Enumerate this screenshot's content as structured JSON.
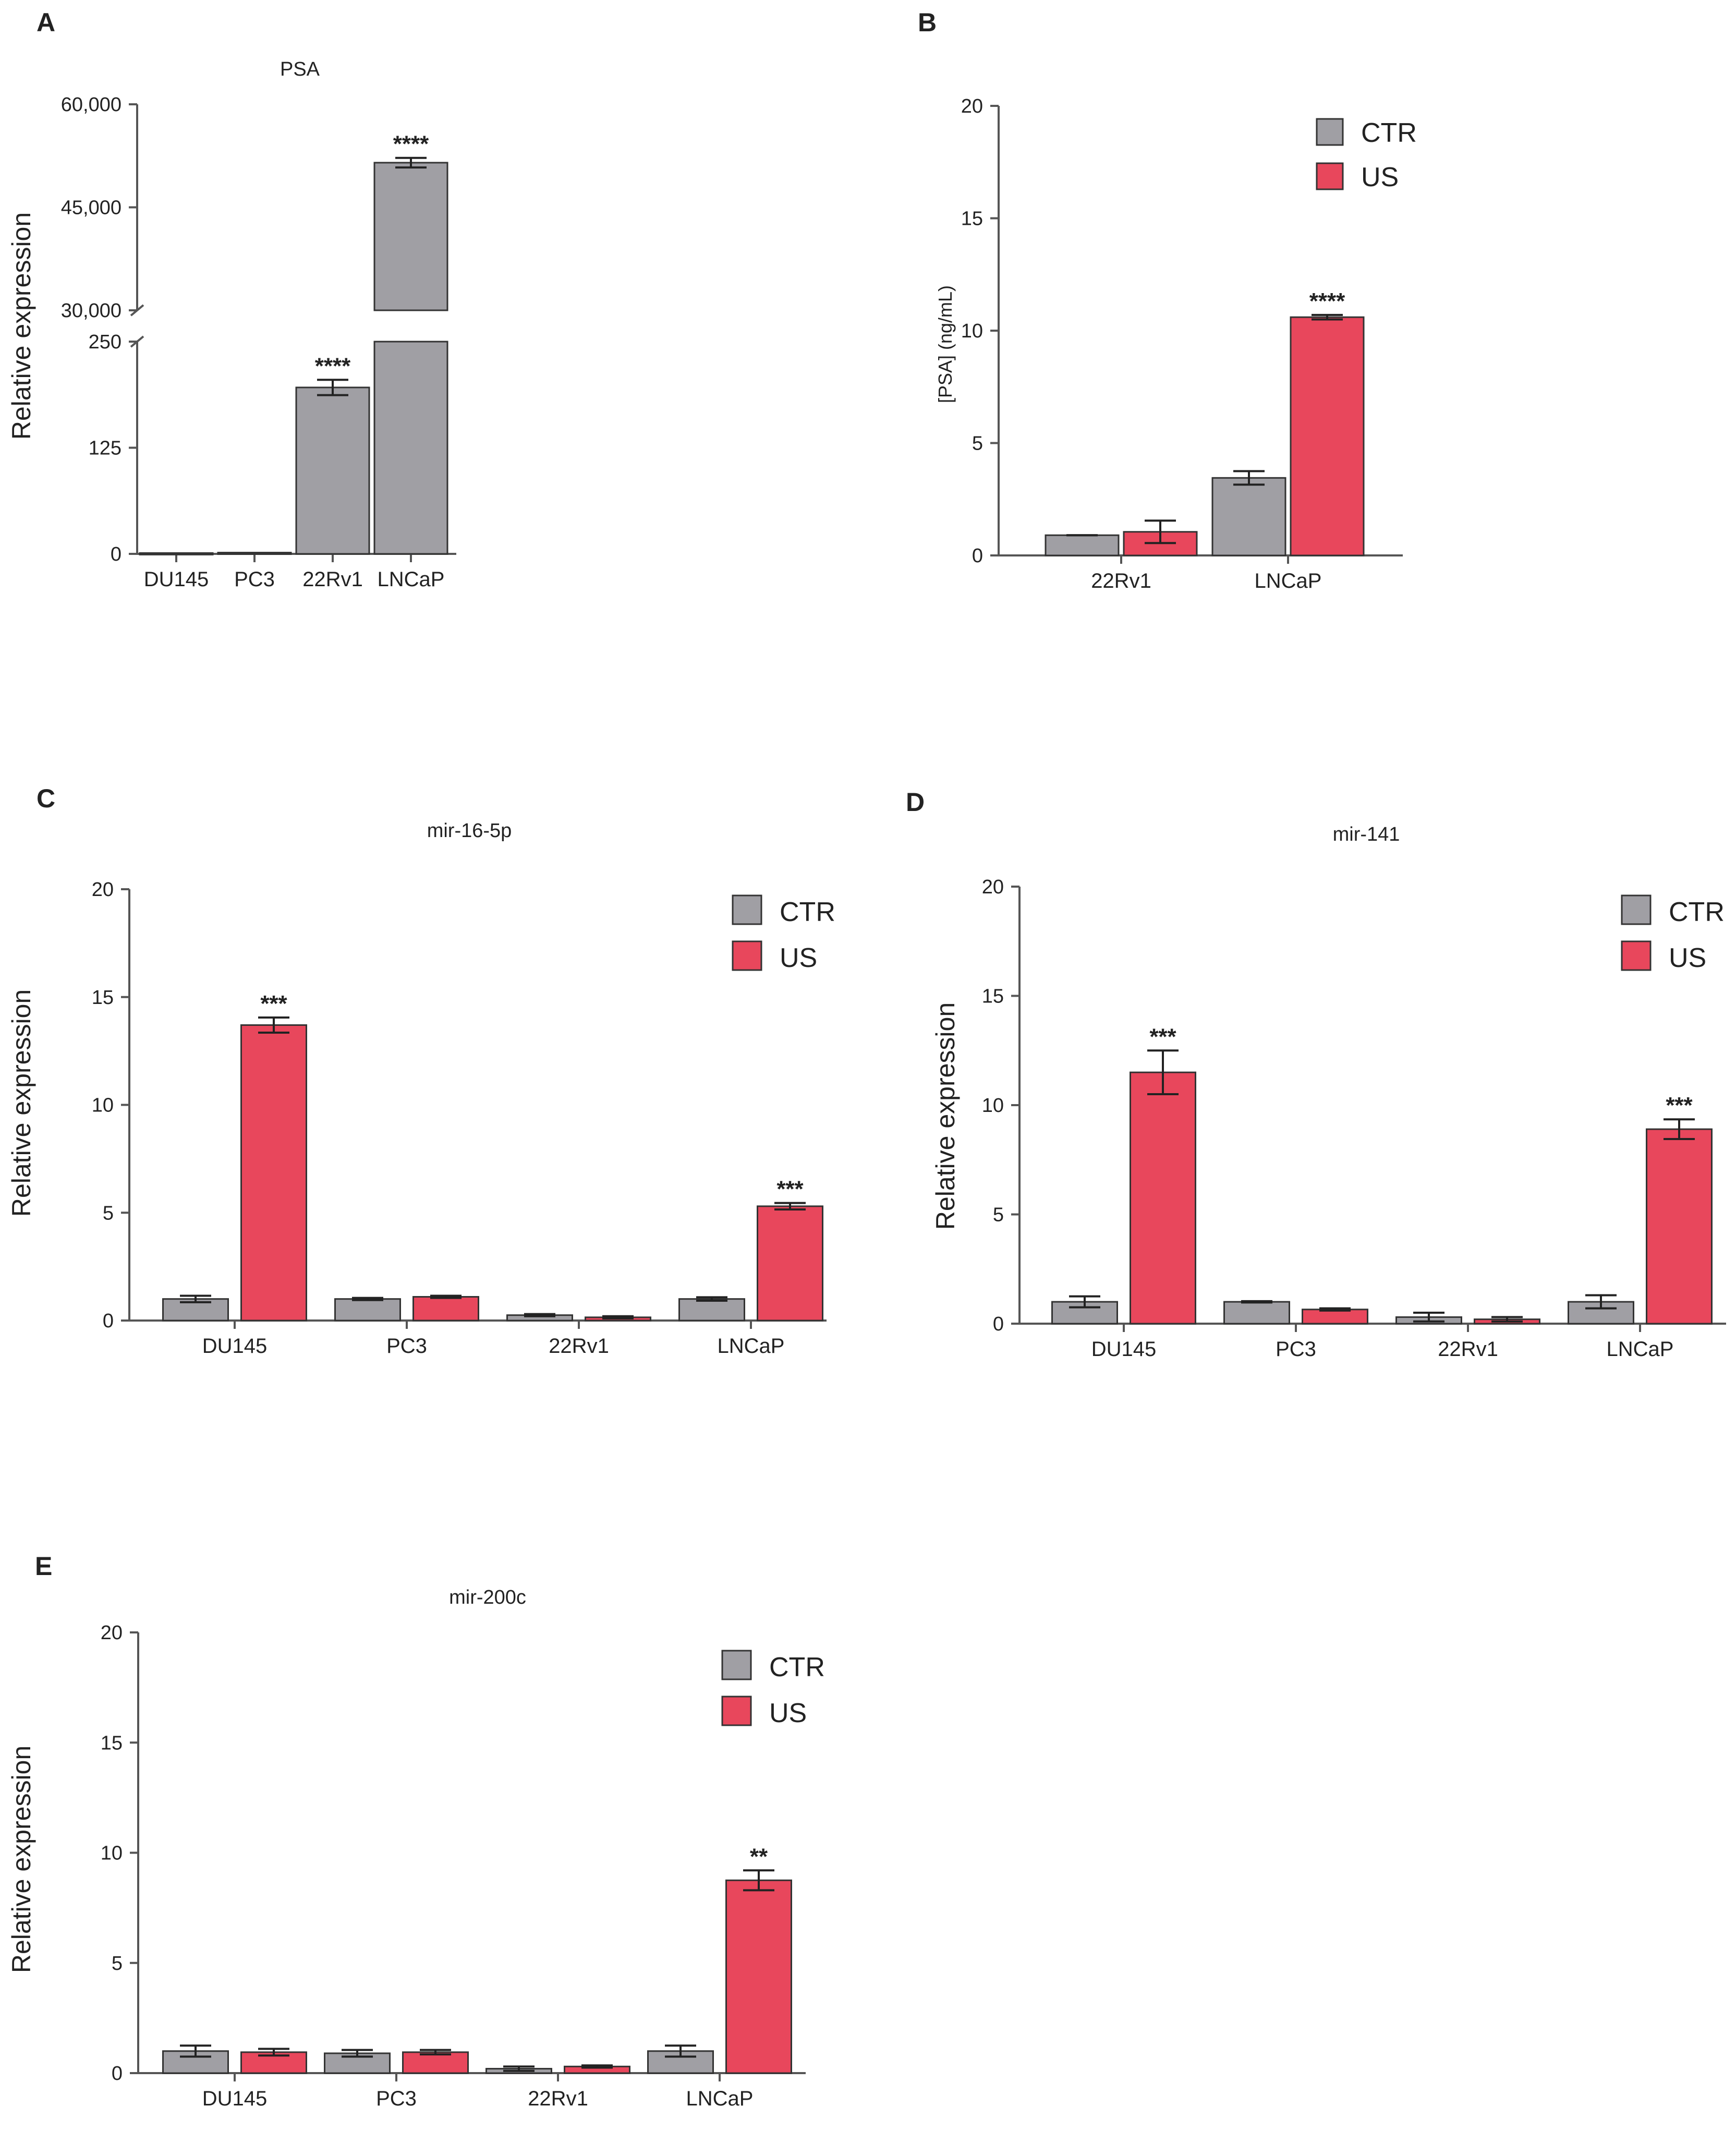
{
  "colors": {
    "ctr": "#A09FA4",
    "us": "#E8475C",
    "axis": "#555555",
    "text": "#222222",
    "errorbar": "#222222"
  },
  "chart_data": [
    {
      "id": "A",
      "panel_label": "A",
      "type": "bar",
      "title": "PSA",
      "ylabel": "Relative expression",
      "xlabel": "",
      "axis_break": true,
      "lower_range": [
        0,
        250
      ],
      "upper_range": [
        30000,
        60000
      ],
      "lower_ticks": [
        "0",
        "125",
        "250"
      ],
      "upper_ticks": [
        "30,000",
        "45,000",
        "60,000"
      ],
      "categories": [
        "DU145",
        "PC3",
        "22Rv1",
        "LNCaP"
      ],
      "series": [
        {
          "name": "CTR",
          "color_key": "ctr",
          "values": [
            1.0,
            1.5,
            196,
            51500
          ],
          "errors": [
            0.5,
            0.5,
            9,
            700
          ],
          "significance": [
            "",
            "",
            "****",
            "****"
          ]
        }
      ]
    },
    {
      "id": "B",
      "panel_label": "B",
      "type": "bar",
      "title": "",
      "ylabel": "[PSA] (ng/mL)",
      "xlabel": "",
      "ylim": [
        0,
        20
      ],
      "yticks": [
        "0",
        "5",
        "10",
        "15",
        "20"
      ],
      "categories": [
        "22Rv1",
        "LNCaP"
      ],
      "legend": [
        "CTR",
        "US"
      ],
      "series": [
        {
          "name": "CTR",
          "color_key": "ctr",
          "values": [
            0.9,
            3.45
          ],
          "errors": [
            0.0,
            0.3
          ],
          "significance": [
            "",
            ""
          ]
        },
        {
          "name": "US",
          "color_key": "us",
          "values": [
            1.05,
            10.6
          ],
          "errors": [
            0.5,
            0.1
          ],
          "significance": [
            "",
            "****"
          ]
        }
      ]
    },
    {
      "id": "C",
      "panel_label": "C",
      "type": "bar",
      "title": "mir-16-5p",
      "ylabel": "Relative expression",
      "xlabel": "",
      "ylim": [
        0,
        20
      ],
      "yticks": [
        "0",
        "5",
        "10",
        "15",
        "20"
      ],
      "categories": [
        "DU145",
        "PC3",
        "22Rv1",
        "LNCaP"
      ],
      "legend": [
        "CTR",
        "US"
      ],
      "series": [
        {
          "name": "CTR",
          "color_key": "ctr",
          "values": [
            1.0,
            1.0,
            0.25,
            1.0
          ],
          "errors": [
            0.15,
            0.05,
            0.05,
            0.08
          ],
          "significance": [
            "",
            "",
            "",
            ""
          ]
        },
        {
          "name": "US",
          "color_key": "us",
          "values": [
            13.7,
            1.1,
            0.15,
            5.3
          ],
          "errors": [
            0.35,
            0.05,
            0.05,
            0.15
          ],
          "significance": [
            "***",
            "",
            "",
            "***"
          ]
        }
      ]
    },
    {
      "id": "D",
      "panel_label": "D",
      "type": "bar",
      "title": "mir-141",
      "ylabel": "Relative expression",
      "xlabel": "",
      "ylim": [
        0,
        20
      ],
      "yticks": [
        "0",
        "5",
        "10",
        "15",
        "20"
      ],
      "categories": [
        "DU145",
        "PC3",
        "22Rv1",
        "LNCaP"
      ],
      "legend": [
        "CTR",
        "US"
      ],
      "series": [
        {
          "name": "CTR",
          "color_key": "ctr",
          "values": [
            1.0,
            1.0,
            0.3,
            1.0
          ],
          "errors": [
            0.25,
            0.03,
            0.2,
            0.3
          ],
          "significance": [
            "",
            "",
            "",
            ""
          ]
        },
        {
          "name": "US",
          "color_key": "us",
          "values": [
            11.5,
            0.65,
            0.2,
            8.9
          ],
          "errors": [
            1.0,
            0.05,
            0.1,
            0.45
          ],
          "significance": [
            "***",
            "",
            "",
            "***"
          ]
        }
      ]
    },
    {
      "id": "E",
      "panel_label": "E",
      "type": "bar",
      "title": "mir-200c",
      "ylabel": "Relative expression",
      "xlabel": "",
      "ylim": [
        0,
        20
      ],
      "yticks": [
        "0",
        "5",
        "10",
        "15",
        "20"
      ],
      "categories": [
        "DU145",
        "PC3",
        "22Rv1",
        "LNCaP"
      ],
      "legend": [
        "CTR",
        "US"
      ],
      "series": [
        {
          "name": "CTR",
          "color_key": "ctr",
          "values": [
            1.0,
            0.9,
            0.2,
            1.0
          ],
          "errors": [
            0.25,
            0.15,
            0.1,
            0.25
          ],
          "significance": [
            "",
            "",
            "",
            ""
          ]
        },
        {
          "name": "US",
          "color_key": "us",
          "values": [
            0.95,
            0.95,
            0.3,
            8.75
          ],
          "errors": [
            0.15,
            0.1,
            0.05,
            0.45
          ],
          "significance": [
            "",
            "",
            "",
            "**"
          ]
        }
      ]
    }
  ]
}
